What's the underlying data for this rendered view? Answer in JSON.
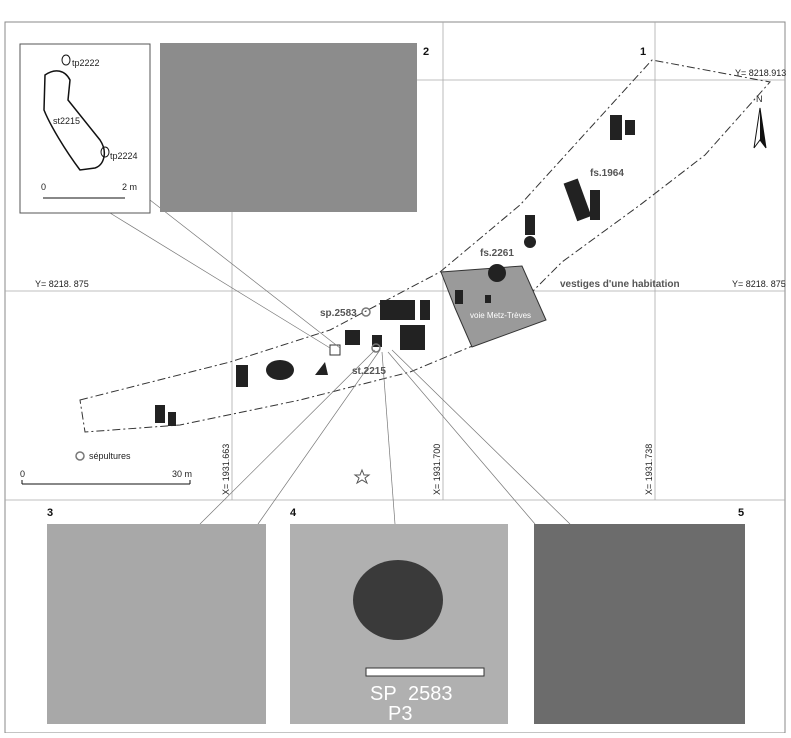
{
  "panels": [
    "1",
    "2",
    "3",
    "4",
    "5"
  ],
  "grid": {
    "y_labels": [
      "Y= 8218.913",
      "Y= 8218. 875",
      "Y= 8218. 875"
    ],
    "x_labels": [
      "X= 1931.663",
      "X= 1931.700",
      "X= 1931.738"
    ]
  },
  "north": "N",
  "inset": {
    "labels": [
      "tp2222",
      "st2215",
      "tp2224"
    ],
    "scale": [
      "0",
      "2 m"
    ]
  },
  "plan": {
    "labels": [
      "fs.1964",
      "fs.2261",
      "vestiges d'une habitation",
      "voie Metz-Trèves",
      "sp.2583",
      "st.2215"
    ]
  },
  "legend": "sépultures",
  "scale": [
    "0",
    "30 m"
  ],
  "photo4": [
    "SP",
    "2583",
    "P3"
  ]
}
